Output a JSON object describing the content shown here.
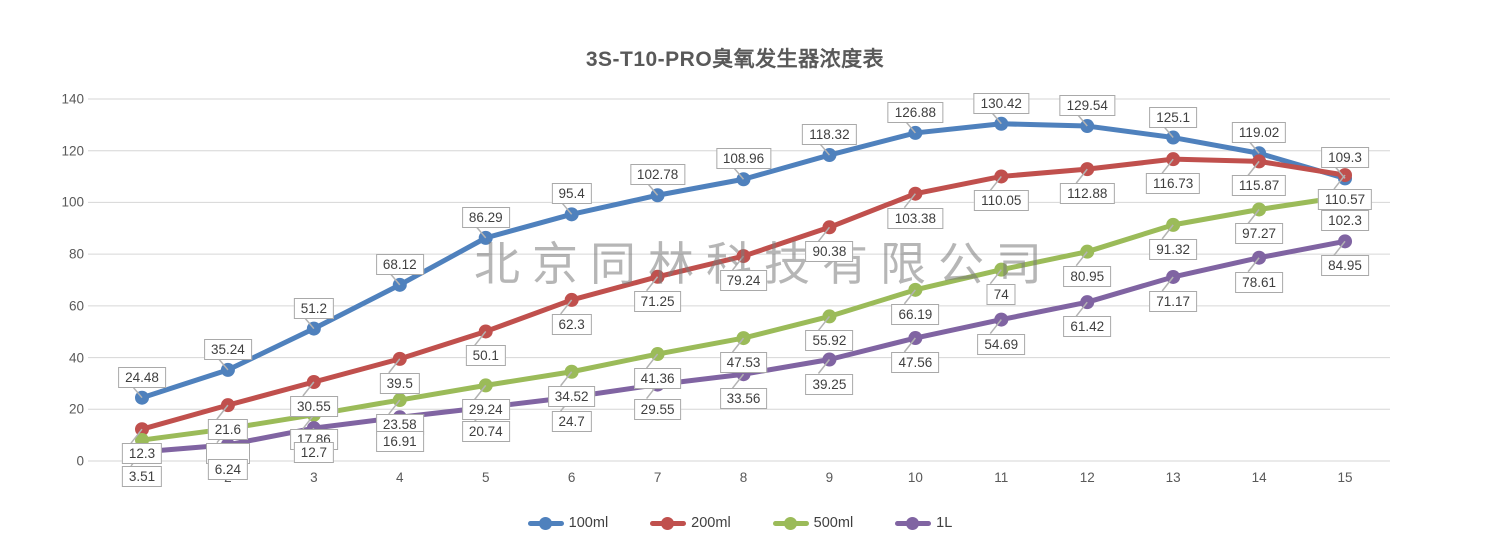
{
  "watermark": "北京同林科技有限公司",
  "colors": {
    "series_100ml": "#4F81BD",
    "series_200ml": "#C0504D",
    "series_500ml": "#9BBB59",
    "series_1L": "#8064A2",
    "gridline": "#D6D6D6",
    "axis_text": "#595959",
    "title_text": "#595959",
    "label_border": "#A9A9A9",
    "label_text": "#3F3F3F",
    "leader_line": "#B3B3B3"
  },
  "chart_data": {
    "type": "line",
    "title": "3S-T10-PRO臭氧发生器浓度表",
    "x": [
      1,
      2,
      3,
      4,
      5,
      6,
      7,
      8,
      9,
      10,
      11,
      12,
      13,
      14,
      15
    ],
    "ylim": [
      0,
      140
    ],
    "y_ticks": [
      0,
      20,
      40,
      60,
      80,
      100,
      120,
      140
    ],
    "grid": "horizontal",
    "legend_position": "bottom",
    "series": [
      {
        "name": "100ml",
        "color": "#4F81BD",
        "label_side": "above",
        "values": [
          24.48,
          35.24,
          51.2,
          68.12,
          86.29,
          95.4,
          102.78,
          108.96,
          118.32,
          126.88,
          130.42,
          129.54,
          125.1,
          119.02,
          109.3
        ],
        "labels": [
          "24.48",
          "35.24",
          "51.2",
          "68.12",
          "86.29",
          "95.4",
          "102.78",
          "108.96",
          "118.32",
          "126.88",
          "130.42",
          "129.54",
          "125.1",
          "119.02",
          "109.3"
        ]
      },
      {
        "name": "200ml",
        "color": "#C0504D",
        "label_side": "below",
        "values": [
          12.3,
          21.6,
          30.55,
          39.5,
          50.1,
          62.3,
          71.25,
          79.24,
          90.38,
          103.38,
          110.05,
          112.88,
          116.73,
          115.87,
          110.57
        ],
        "labels": [
          "12.3",
          "21.6",
          "30.55",
          "39.5",
          "50.1",
          "62.3",
          "71.25",
          "79.24",
          "90.38",
          "103.38",
          "110.05",
          "112.88",
          "116.73",
          "115.87",
          "110.57"
        ]
      },
      {
        "name": "500ml",
        "color": "#9BBB59",
        "label_side": "below",
        "values": [
          8.1,
          12.5,
          17.86,
          23.58,
          29.24,
          34.52,
          41.36,
          47.53,
          55.92,
          66.19,
          74,
          80.95,
          91.32,
          97.27,
          102.3
        ],
        "labels": [
          null,
          "",
          "17.86",
          "23.58",
          "29.24",
          "34.52",
          "41.36",
          "47.53",
          "55.92",
          "66.19",
          "74",
          "80.95",
          "91.32",
          "97.27",
          "102.3"
        ]
      },
      {
        "name": "1L",
        "color": "#8064A2",
        "label_side": "below",
        "values": [
          3.51,
          6.24,
          12.7,
          16.91,
          20.74,
          24.7,
          29.55,
          33.56,
          39.25,
          47.56,
          54.69,
          61.42,
          71.17,
          78.61,
          84.95
        ],
        "labels": [
          "3.51",
          "6.24",
          "12.7",
          "16.91",
          "20.74",
          "24.7",
          "29.55",
          "33.56",
          "39.25",
          "47.56",
          "54.69",
          "61.42",
          "71.17",
          "78.61",
          "84.95"
        ]
      }
    ]
  }
}
